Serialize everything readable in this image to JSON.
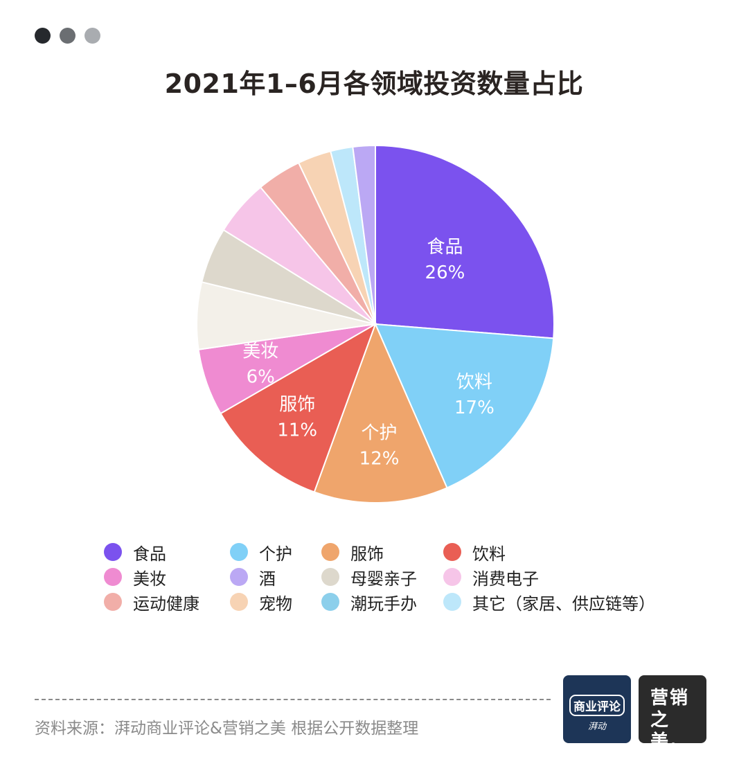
{
  "window_dots": [
    "#26292d",
    "#6b6e72",
    "#a9acb0"
  ],
  "chart_data": {
    "type": "pie",
    "title": "2021年1–6月各领域投资数量占比",
    "slices": [
      {
        "name": "食品",
        "value": 26,
        "color": "#7b52ee",
        "show_label": true,
        "label_pct": "26%"
      },
      {
        "name": "饮料",
        "value": 17,
        "color": "#80d0f7",
        "show_label": true,
        "label_pct": "17%"
      },
      {
        "name": "个护",
        "value": 12,
        "color": "#efa56c",
        "show_label": true,
        "label_pct": "12%"
      },
      {
        "name": "服饰",
        "value": 11,
        "color": "#e95e54",
        "show_label": true,
        "label_pct": "11%"
      },
      {
        "name": "美妆",
        "value": 6,
        "color": "#ef8bd1",
        "show_label": true,
        "label_pct": "6%"
      },
      {
        "name": "",
        "value": 6,
        "color": "#f3f0e9",
        "show_label": false
      },
      {
        "name": "",
        "value": 5,
        "color": "#ddd8cc",
        "show_label": false
      },
      {
        "name": "",
        "value": 5,
        "color": "#f6c5e8",
        "show_label": false
      },
      {
        "name": "",
        "value": 4,
        "color": "#f1aea8",
        "show_label": false
      },
      {
        "name": "",
        "value": 3,
        "color": "#f7d3b4",
        "show_label": false
      },
      {
        "name": "",
        "value": 2,
        "color": "#bde7fa",
        "show_label": false
      },
      {
        "name": "",
        "value": 2,
        "color": "#bba8f4",
        "show_label": false
      }
    ],
    "legend_placement": "bottom",
    "legend": [
      {
        "label": "食品",
        "color": "#7b52ee"
      },
      {
        "label": "个护",
        "color": "#80d0f7"
      },
      {
        "label": "服饰",
        "color": "#efa56c"
      },
      {
        "label": "饮料",
        "color": "#e95e54"
      },
      {
        "label": "美妆",
        "color": "#ef8bd1"
      },
      {
        "label": "酒",
        "color": "#bba8f4"
      },
      {
        "label": "母婴亲子",
        "color": "#ddd8cc"
      },
      {
        "label": "消费电子",
        "color": "#f6c5e8"
      },
      {
        "label": "运动健康",
        "color": "#f1aea8"
      },
      {
        "label": "宠物",
        "color": "#f7d3b4"
      },
      {
        "label": "潮玩手办",
        "color": "#8ccfeb"
      },
      {
        "label": "其它（家居、供应链等）",
        "color": "#bde7fa"
      }
    ]
  },
  "footer": {
    "source": "资料来源：湃动商业评论&营销之美 根据公开数据整理",
    "logo_left_main": "商业评论",
    "logo_left_sub": "湃动",
    "logo_left_bg": "#1d3557",
    "logo_right_line1": "营销",
    "logo_right_line2": "之美。",
    "logo_right_bg": "#2b2b2b"
  }
}
